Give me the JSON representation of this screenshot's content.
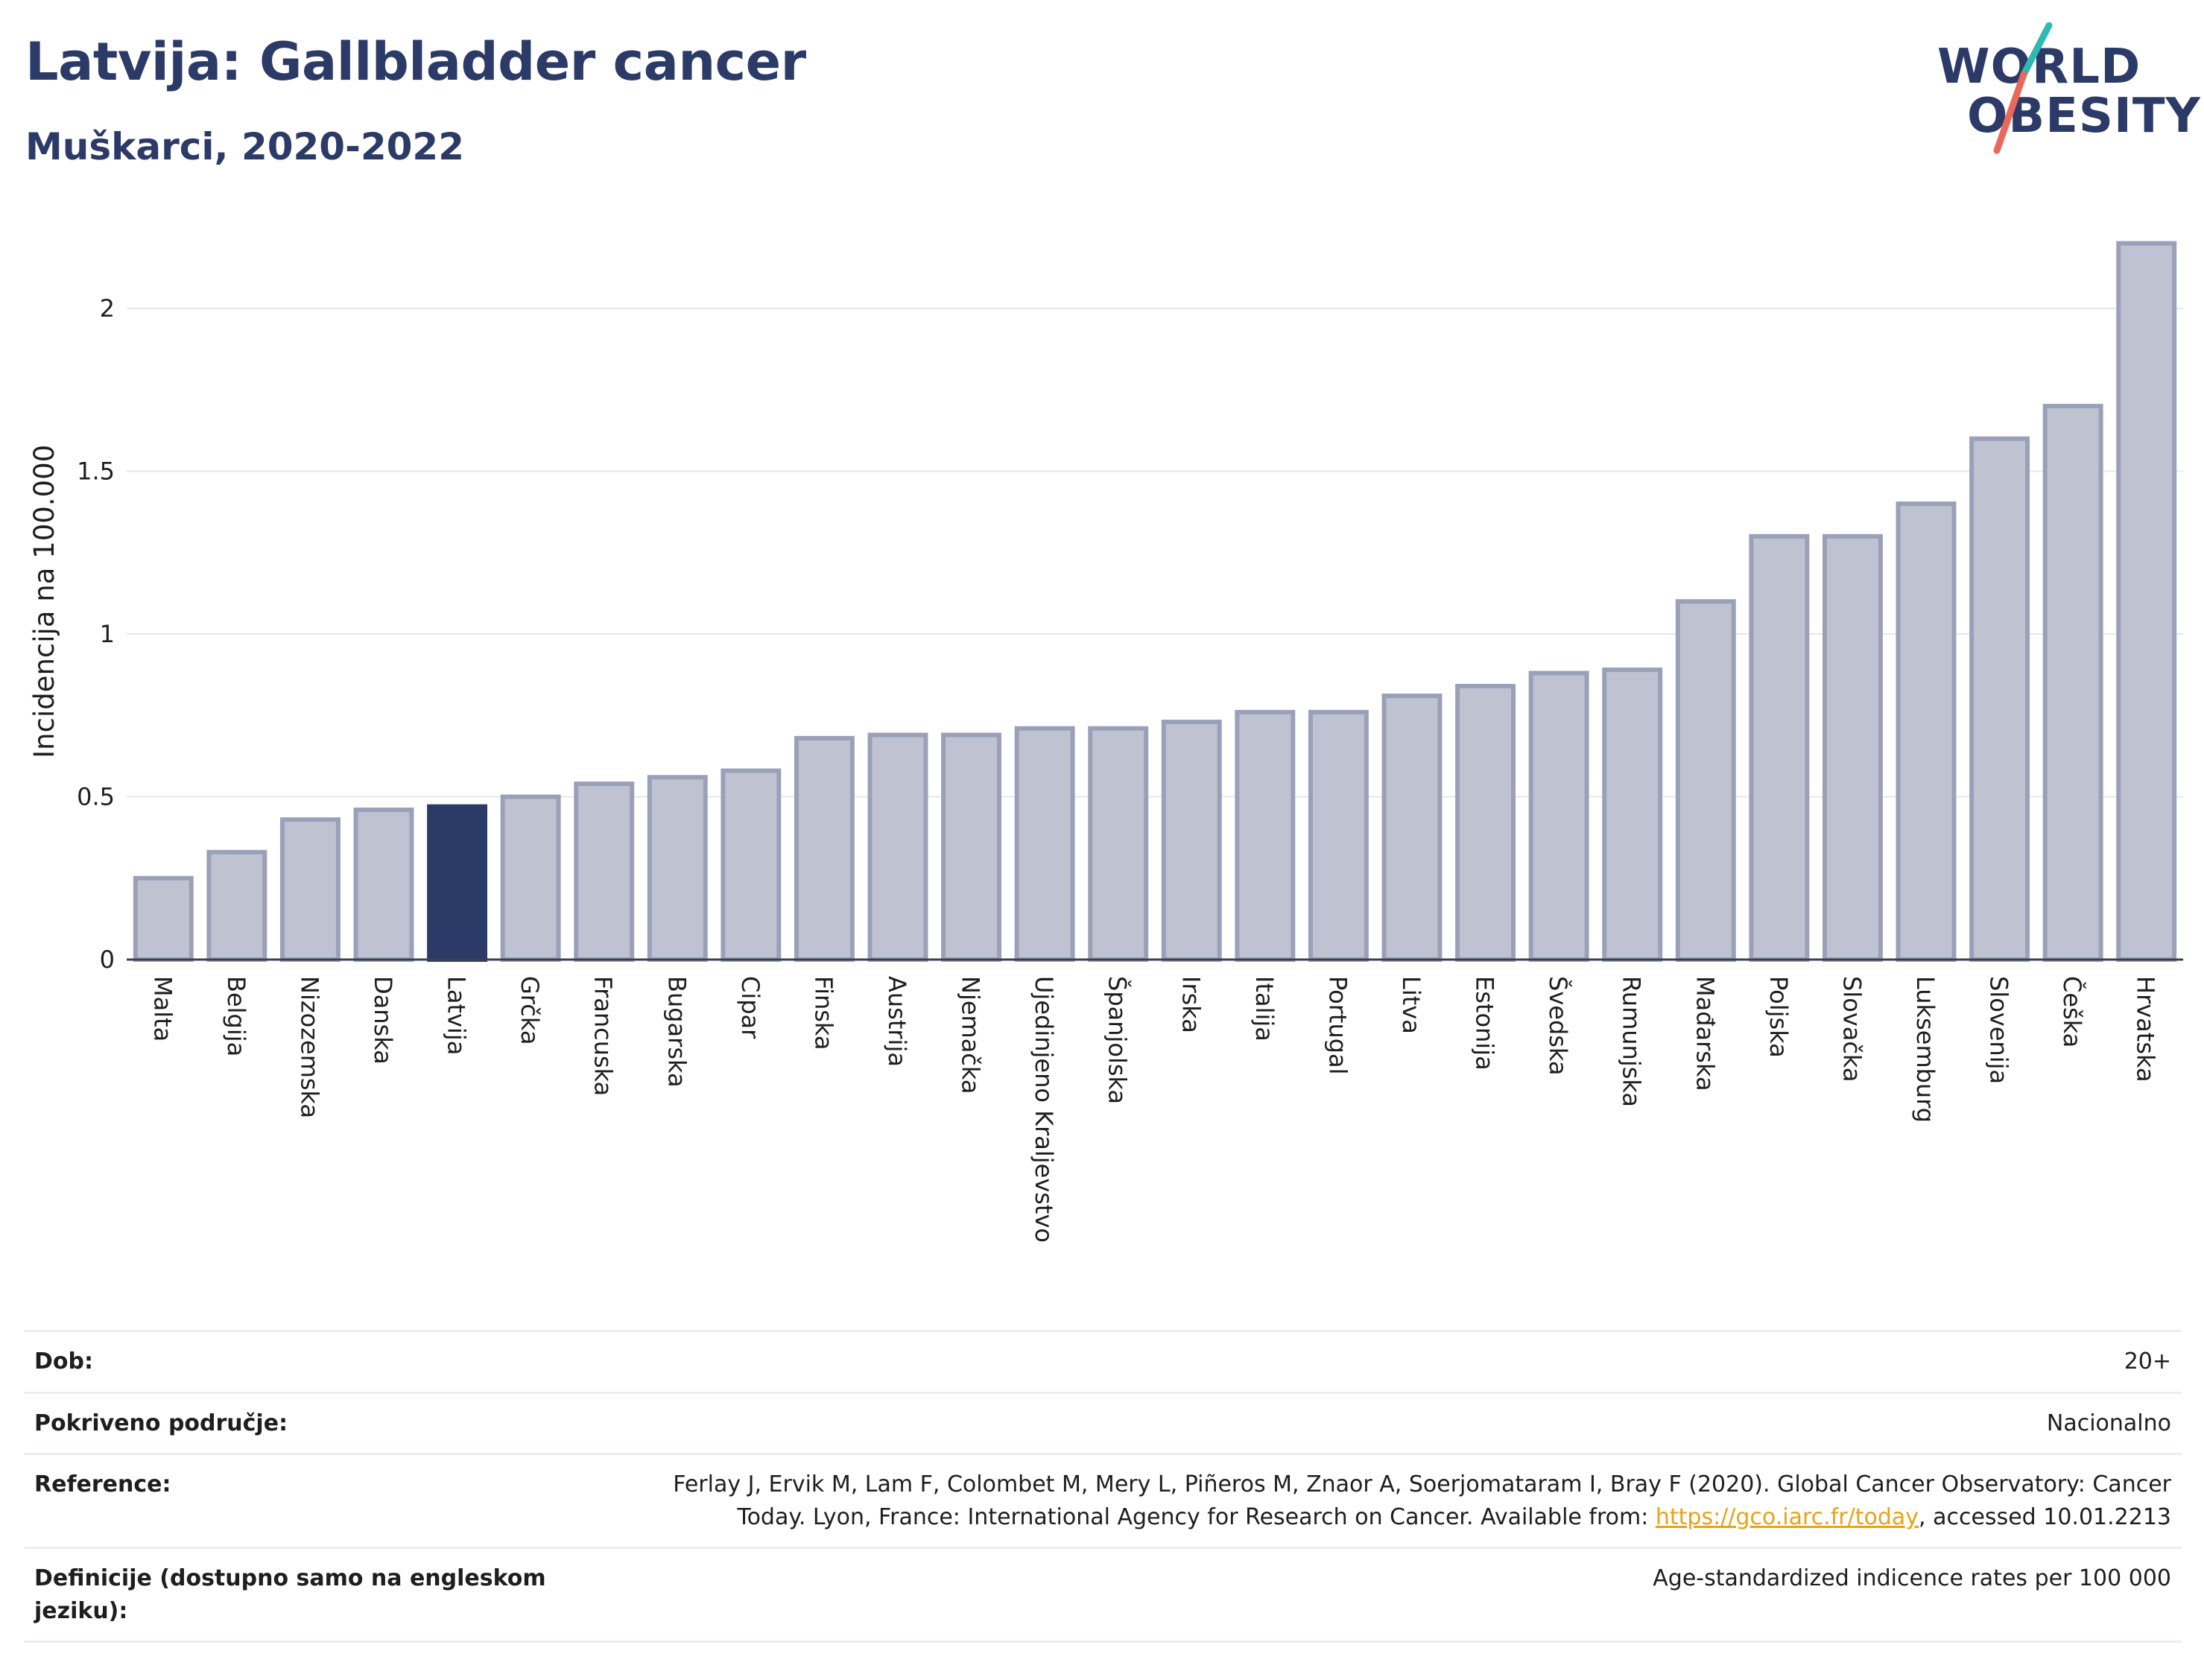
{
  "header": {
    "title": "Latvija: Gallbladder cancer",
    "subtitle": "Muškarci, 2020-2022"
  },
  "logo": {
    "line1": "WORLD",
    "line2": "OBESITY",
    "colors": {
      "text": "#2b3a67",
      "slash_top": "#2fb9b3",
      "slash_bottom": "#e8685a"
    }
  },
  "colors": {
    "bar_default": "#bfc3d1",
    "bar_default_stroke": "#9aa0b8",
    "bar_highlight": "#2b3a67",
    "grid": "#e6e8ee",
    "axis": "#3a3f52"
  },
  "chart_data": {
    "type": "bar",
    "title": "Latvija: Gallbladder cancer",
    "subtitle": "Muškarci, 2020-2022",
    "xlabel": "",
    "ylabel": "Incidencija na 100.000",
    "ylim": [
      0,
      2.2
    ],
    "yticks": [
      0,
      0.5,
      1,
      1.5,
      2
    ],
    "ytick_labels": [
      "0",
      "0.5",
      "1",
      "1.5",
      "2"
    ],
    "grid": true,
    "highlight": "Latvija",
    "categories": [
      "Malta",
      "Belgija",
      "Nizozemska",
      "Danska",
      "Latvija",
      "Grčka",
      "Francuska",
      "Bugarska",
      "Cipar",
      "Finska",
      "Austrija",
      "Njemačka",
      "Ujedinjeno Kraljevstvo",
      "Španjolska",
      "Irska",
      "Italija",
      "Portugal",
      "Litva",
      "Estonija",
      "Švedska",
      "Rumunjska",
      "Mađarska",
      "Poljska",
      "Slovačka",
      "Luksemburg",
      "Slovenija",
      "Češka",
      "Hrvatska"
    ],
    "values": [
      0.25,
      0.33,
      0.43,
      0.46,
      0.47,
      0.5,
      0.54,
      0.56,
      0.58,
      0.68,
      0.69,
      0.69,
      0.71,
      0.71,
      0.73,
      0.76,
      0.76,
      0.81,
      0.84,
      0.88,
      0.89,
      1.1,
      1.3,
      1.3,
      1.4,
      1.6,
      1.7,
      2.2
    ]
  },
  "meta": [
    {
      "key": "Dob:",
      "value": "20+"
    },
    {
      "key": "Pokriveno područje:",
      "value": "Nacionalno"
    },
    {
      "key": "Reference:",
      "value_line1": "Ferlay J, Ervik M, Lam F, Colombet M, Mery L, Piñeros M, Znaor A, Soerjomataram I, Bray F (2020). Global Cancer Observatory: Cancer",
      "value_line2_pre": "Today. Lyon, France: International Agency for Research on Cancer. Available from: ",
      "link": "https://gco.iarc.fr/today",
      "value_line2_post": ", accessed 10.01.2213"
    },
    {
      "key": "Definicije (dostupno samo na engleskom jeziku):",
      "value": "Age-standardized indicence rates per 100 000"
    }
  ]
}
